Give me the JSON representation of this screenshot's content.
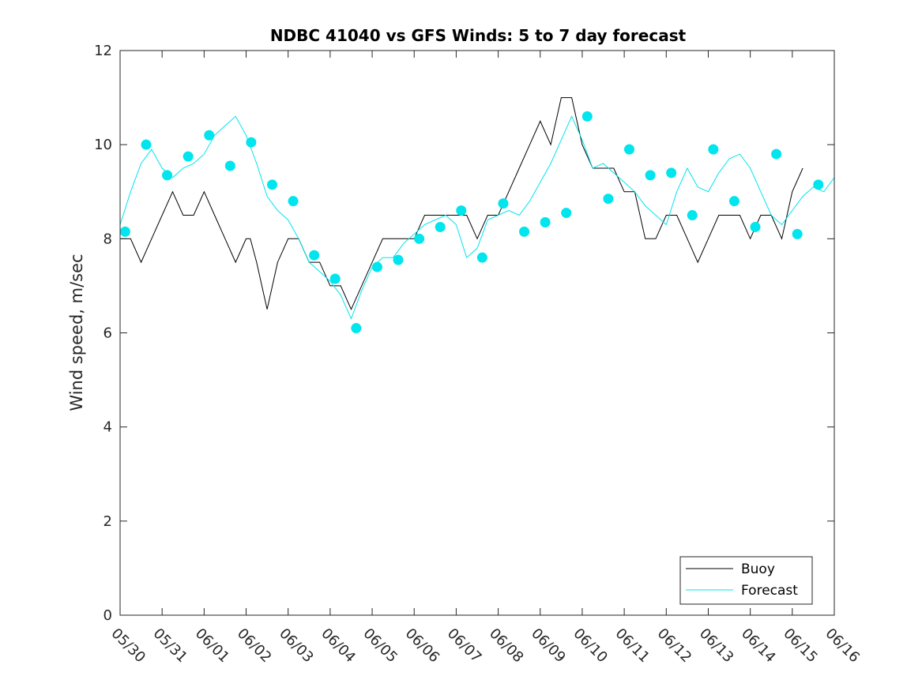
{
  "chart_data": {
    "type": "line",
    "title": "NDBC 41040 vs GFS Winds: 5 to 7 day forecast",
    "xlabel": "",
    "ylabel": "Wind speed, m/sec",
    "ylim": [
      0,
      12
    ],
    "yticks": [
      0,
      2,
      4,
      6,
      8,
      10,
      12
    ],
    "xlim_days": [
      0,
      17
    ],
    "xtick_labels": [
      "05/30",
      "05/31",
      "06/01",
      "06/02",
      "06/03",
      "06/04",
      "06/05",
      "06/06",
      "06/07",
      "06/08",
      "06/09",
      "06/10",
      "06/11",
      "06/12",
      "06/13",
      "06/14",
      "06/15",
      "06/16"
    ],
    "grid": false,
    "legend_position": "bottom-right",
    "colors": {
      "buoy": "#000000",
      "forecast": "#00e5ee",
      "axes": "#262626"
    },
    "series": [
      {
        "name": "Buoy",
        "kind": "line",
        "x_days": [
          0,
          0.25,
          0.5,
          0.75,
          1.0,
          1.25,
          1.5,
          1.75,
          2.0,
          2.25,
          2.5,
          2.75,
          3.0,
          3.1,
          3.25,
          3.5,
          3.75,
          4.0,
          4.25,
          4.5,
          4.75,
          5.0,
          5.25,
          5.5,
          5.75,
          6.0,
          6.25,
          6.5,
          6.75,
          7.0,
          7.25,
          7.5,
          7.75,
          8.0,
          8.25,
          8.5,
          8.75,
          9.0,
          9.25,
          9.5,
          9.75,
          10.0,
          10.25,
          10.5,
          10.75,
          11.0,
          11.25,
          11.5,
          11.75,
          12.0,
          12.25,
          12.5,
          12.75,
          13.0,
          13.25,
          13.5,
          13.75,
          14.0,
          14.25,
          14.5,
          14.75,
          15.0,
          15.25,
          15.5,
          15.75,
          16.0,
          16.25,
          16.5,
          16.75,
          17.0
        ],
        "y": [
          8,
          8,
          7.5,
          8,
          8.5,
          9,
          8.5,
          8.5,
          9,
          8.5,
          8,
          7.5,
          8,
          8,
          7.5,
          6.5,
          7.5,
          8,
          8,
          7.5,
          7.5,
          7,
          7,
          6.5,
          7,
          7.5,
          8,
          8,
          8,
          8,
          8.5,
          8.5,
          8.5,
          8.5,
          8.5,
          8,
          8.5,
          8.5,
          9,
          9.5,
          10,
          10.5,
          10,
          11,
          11,
          10,
          9.5,
          9.5,
          9.5,
          9,
          9,
          8,
          8,
          8.5,
          8.5,
          8,
          7.5,
          8,
          8.5,
          8.5,
          8.5,
          8,
          8.5,
          8.5,
          8,
          9,
          9.5,
          null,
          null,
          null
        ]
      },
      {
        "name": "Forecast",
        "kind": "line",
        "note_lines": 4,
        "x_days": [
          0,
          0.25,
          0.5,
          0.75,
          1.0,
          1.25,
          1.5,
          1.75,
          2.0,
          2.25,
          2.5,
          2.75,
          3.0,
          3.25,
          3.5,
          3.75,
          4.0,
          4.25,
          4.5,
          4.75,
          5.0,
          5.25,
          5.5,
          5.75,
          6.0,
          6.25,
          6.5,
          6.75,
          7.0,
          7.25,
          7.5,
          7.75,
          8.0,
          8.25,
          8.5,
          8.75,
          9.0,
          9.25,
          9.5,
          9.75,
          10.0,
          10.25,
          10.5,
          10.75,
          11.0,
          11.25,
          11.5,
          11.75,
          12.0,
          12.25,
          12.5,
          12.75,
          13.0,
          13.25,
          13.5,
          13.75,
          14.0,
          14.25,
          14.5,
          14.75,
          15.0,
          15.25,
          15.5,
          15.75,
          16.0,
          16.25,
          16.5,
          16.75,
          17.0
        ],
        "y": [
          8.3,
          9.0,
          9.6,
          9.9,
          9.5,
          9.3,
          9.5,
          9.6,
          9.8,
          10.2,
          10.4,
          10.6,
          10.2,
          9.6,
          8.9,
          8.6,
          8.4,
          8.0,
          7.5,
          7.3,
          7.1,
          6.8,
          6.3,
          6.9,
          7.4,
          7.6,
          7.6,
          7.9,
          8.1,
          8.3,
          8.4,
          8.5,
          8.3,
          7.6,
          7.8,
          8.4,
          8.5,
          8.6,
          8.5,
          8.8,
          9.2,
          9.6,
          10.1,
          10.6,
          10.1,
          9.5,
          9.6,
          9.4,
          9.2,
          9.0,
          8.7,
          8.5,
          8.3,
          9.0,
          9.5,
          9.1,
          9.0,
          9.4,
          9.7,
          9.8,
          9.5,
          9.0,
          8.5,
          8.3,
          8.6,
          8.9,
          9.1,
          9.0,
          9.3
        ]
      },
      {
        "name": "Forecast points",
        "kind": "markers",
        "x_days": [
          0.12,
          0.62,
          1.12,
          1.62,
          2.12,
          2.62,
          3.12,
          3.62,
          4.12,
          4.62,
          5.12,
          5.62,
          6.12,
          6.62,
          7.12,
          7.62,
          8.12,
          8.62,
          9.12,
          9.62,
          10.12,
          10.62,
          11.12,
          11.62,
          12.12,
          12.62,
          13.12,
          13.62,
          14.12,
          14.62,
          15.12,
          15.62,
          16.12,
          16.62
        ],
        "y": [
          8.15,
          10.0,
          9.35,
          9.75,
          10.2,
          9.55,
          10.05,
          9.15,
          8.8,
          7.65,
          7.15,
          6.1,
          7.4,
          7.55,
          8.0,
          8.25,
          8.6,
          7.6,
          8.75,
          8.15,
          8.35,
          8.55,
          10.6,
          8.85,
          9.9,
          9.35,
          9.4,
          8.5,
          9.9,
          8.8,
          8.25,
          9.8,
          8.1,
          9.15
        ]
      }
    ],
    "legend": [
      {
        "label": "Buoy",
        "color": "#000000"
      },
      {
        "label": "Forecast",
        "color": "#00e5ee"
      }
    ]
  }
}
